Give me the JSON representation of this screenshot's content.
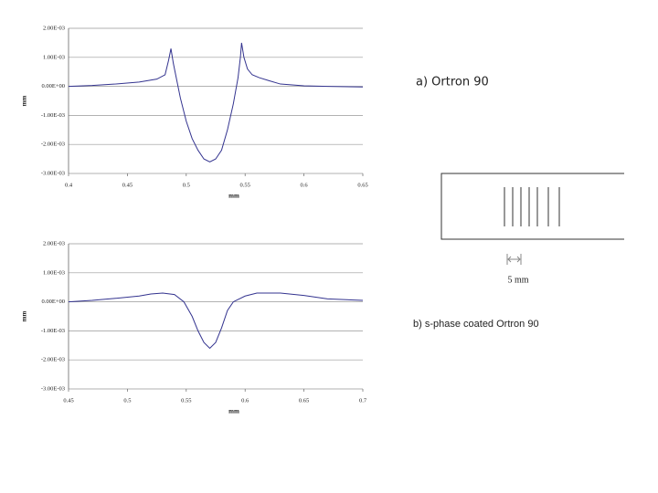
{
  "chart_data": [
    {
      "type": "line",
      "x_label": "mm",
      "y_label": "mm",
      "annotation": "a) Ortron 90",
      "xlim": [
        0.4,
        0.65
      ],
      "xticks": [
        0.4,
        0.45,
        0.5,
        0.55,
        0.6,
        0.65
      ],
      "ylim": [
        -0.003,
        0.002
      ],
      "yticks": [
        {
          "value": -0.003,
          "label": "-3.00E-03"
        },
        {
          "value": -0.002,
          "label": "-2.00E-03"
        },
        {
          "value": -0.001,
          "label": "-1.00E-03"
        },
        {
          "value": 0,
          "label": "0.00E+00"
        },
        {
          "value": 0.001,
          "label": "1.00E-03"
        },
        {
          "value": 0.002,
          "label": "2.00E-03"
        }
      ],
      "grid": true,
      "x": [
        0.4,
        0.42,
        0.44,
        0.46,
        0.475,
        0.482,
        0.485,
        0.487,
        0.489,
        0.492,
        0.495,
        0.5,
        0.505,
        0.51,
        0.515,
        0.52,
        0.525,
        0.53,
        0.535,
        0.54,
        0.544,
        0.546,
        0.547,
        0.549,
        0.552,
        0.556,
        0.562,
        0.57,
        0.58,
        0.6,
        0.62,
        0.65
      ],
      "series": [
        {
          "color": "#33338f",
          "values": [
            0.0,
            3e-05,
            8e-05,
            0.00015,
            0.00025,
            0.0004,
            0.0009,
            0.0013,
            0.0008,
            0.0002,
            -0.0004,
            -0.0012,
            -0.0018,
            -0.0022,
            -0.0025,
            -0.0026,
            -0.0025,
            -0.0022,
            -0.0015,
            -0.0006,
            0.0003,
            0.001,
            0.0015,
            0.001,
            0.0006,
            0.0004,
            0.0003,
            0.0002,
            8e-05,
            2e-05,
            0.0,
            -2e-05
          ]
        }
      ]
    },
    {
      "type": "line",
      "x_label": "mm",
      "y_label": "mm",
      "annotation": "b)  s-phase coated Ortron 90",
      "xlim": [
        0.45,
        0.7
      ],
      "xticks": [
        0.45,
        0.5,
        0.55,
        0.6,
        0.65,
        0.7
      ],
      "ylim": [
        -0.003,
        0.002
      ],
      "yticks": [
        {
          "value": -0.003,
          "label": "-3.00E-03"
        },
        {
          "value": -0.002,
          "label": "-2.00E-03"
        },
        {
          "value": -0.001,
          "label": "-1.00E-03"
        },
        {
          "value": 0,
          "label": "0.00E+00"
        },
        {
          "value": 0.001,
          "label": "1.00E-03"
        },
        {
          "value": 0.002,
          "label": "2.00E-03"
        }
      ],
      "grid": true,
      "x": [
        0.45,
        0.47,
        0.49,
        0.51,
        0.52,
        0.53,
        0.54,
        0.548,
        0.555,
        0.56,
        0.565,
        0.57,
        0.575,
        0.58,
        0.585,
        0.59,
        0.6,
        0.61,
        0.63,
        0.65,
        0.67,
        0.7
      ],
      "series": [
        {
          "color": "#33338f",
          "values": [
            0.0,
            5e-05,
            0.00012,
            0.0002,
            0.00027,
            0.0003,
            0.00025,
            0.0,
            -0.0005,
            -0.001,
            -0.0014,
            -0.0016,
            -0.0014,
            -0.0009,
            -0.0003,
            0.0,
            0.0002,
            0.0003,
            0.0003,
            0.00022,
            0.0001,
            5e-05
          ]
        }
      ]
    }
  ],
  "scale_bar": {
    "label": "5 mm"
  }
}
